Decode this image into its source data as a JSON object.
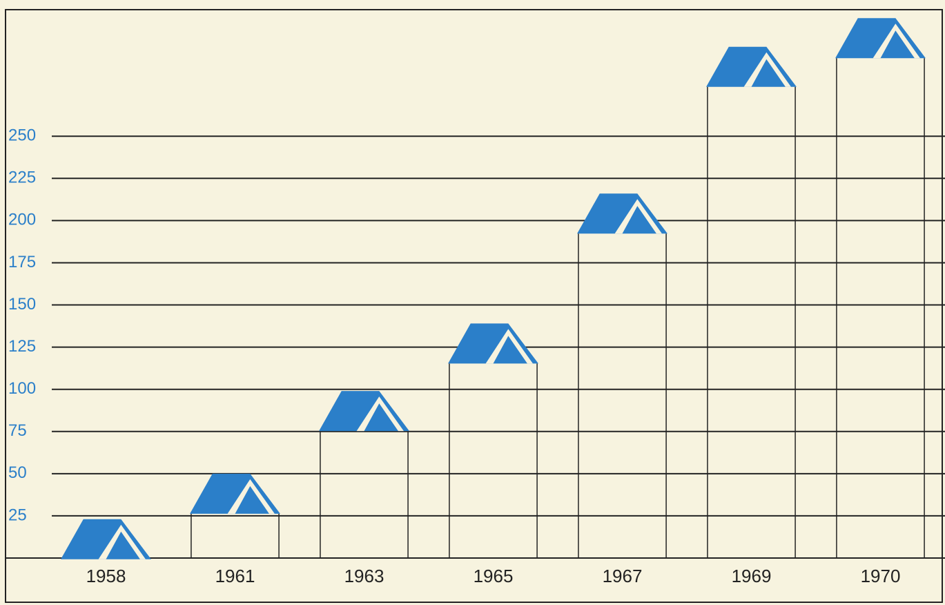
{
  "chart_data": {
    "type": "bar",
    "categories": [
      "1958",
      "1961",
      "1963",
      "1965",
      "1967",
      "1969",
      "1970"
    ],
    "values": [
      23,
      50,
      99,
      139,
      216,
      303,
      320
    ],
    "color": "#2b7fc9",
    "ylim": [
      0,
      325
    ],
    "yticks": [
      25,
      50,
      75,
      100,
      125,
      150,
      175,
      200,
      225,
      250
    ],
    "grid": true
  }
}
